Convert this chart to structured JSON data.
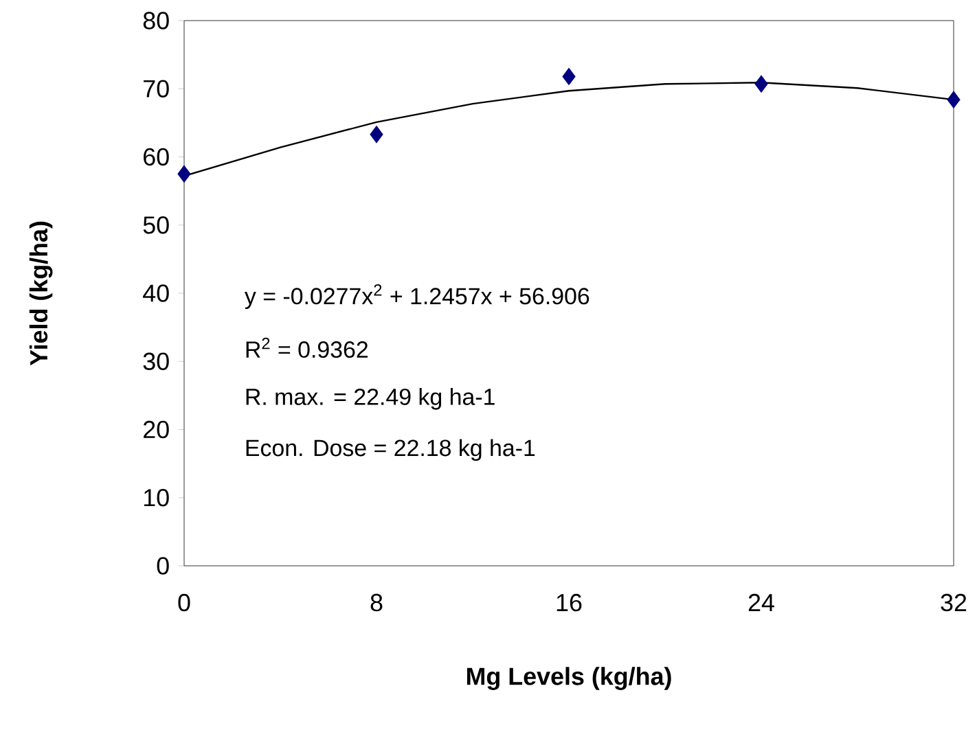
{
  "chart_data": {
    "type": "scatter",
    "xlabel": "Mg Levels (kg/ha)",
    "ylabel": "Yield (kg/ha)",
    "xlim": [
      0,
      32
    ],
    "xticks": [
      0,
      8,
      16,
      24,
      32
    ],
    "ylim": [
      0,
      80
    ],
    "yticks": [
      0,
      10,
      20,
      30,
      40,
      50,
      60,
      70,
      80
    ],
    "grid": false,
    "marker": "diamond",
    "x": [
      0,
      8,
      16,
      24,
      32
    ],
    "series": [
      {
        "color": "#000080",
        "values": [
          57.5,
          63.3,
          71.8,
          70.7,
          68.4
        ]
      },
      {
        "type": "line",
        "color": "#000000",
        "marker": "none",
        "line_style": "solid",
        "x": [
          0,
          4,
          8,
          12,
          16,
          20,
          24,
          28,
          32
        ],
        "values": [
          57.2,
          61.4,
          65.1,
          67.8,
          69.7,
          70.7,
          70.9,
          70.1,
          68.4
        ]
      }
    ],
    "annotations": [
      "y = -0.0277x$^{2}$ + 1.2457x + 56.906",
      "R$^{2}$ = 0.9362",
      "R. max. = 22.49 kg ha-1",
      "Econ. Dose = 22.18 kg ha-1"
    ]
  }
}
